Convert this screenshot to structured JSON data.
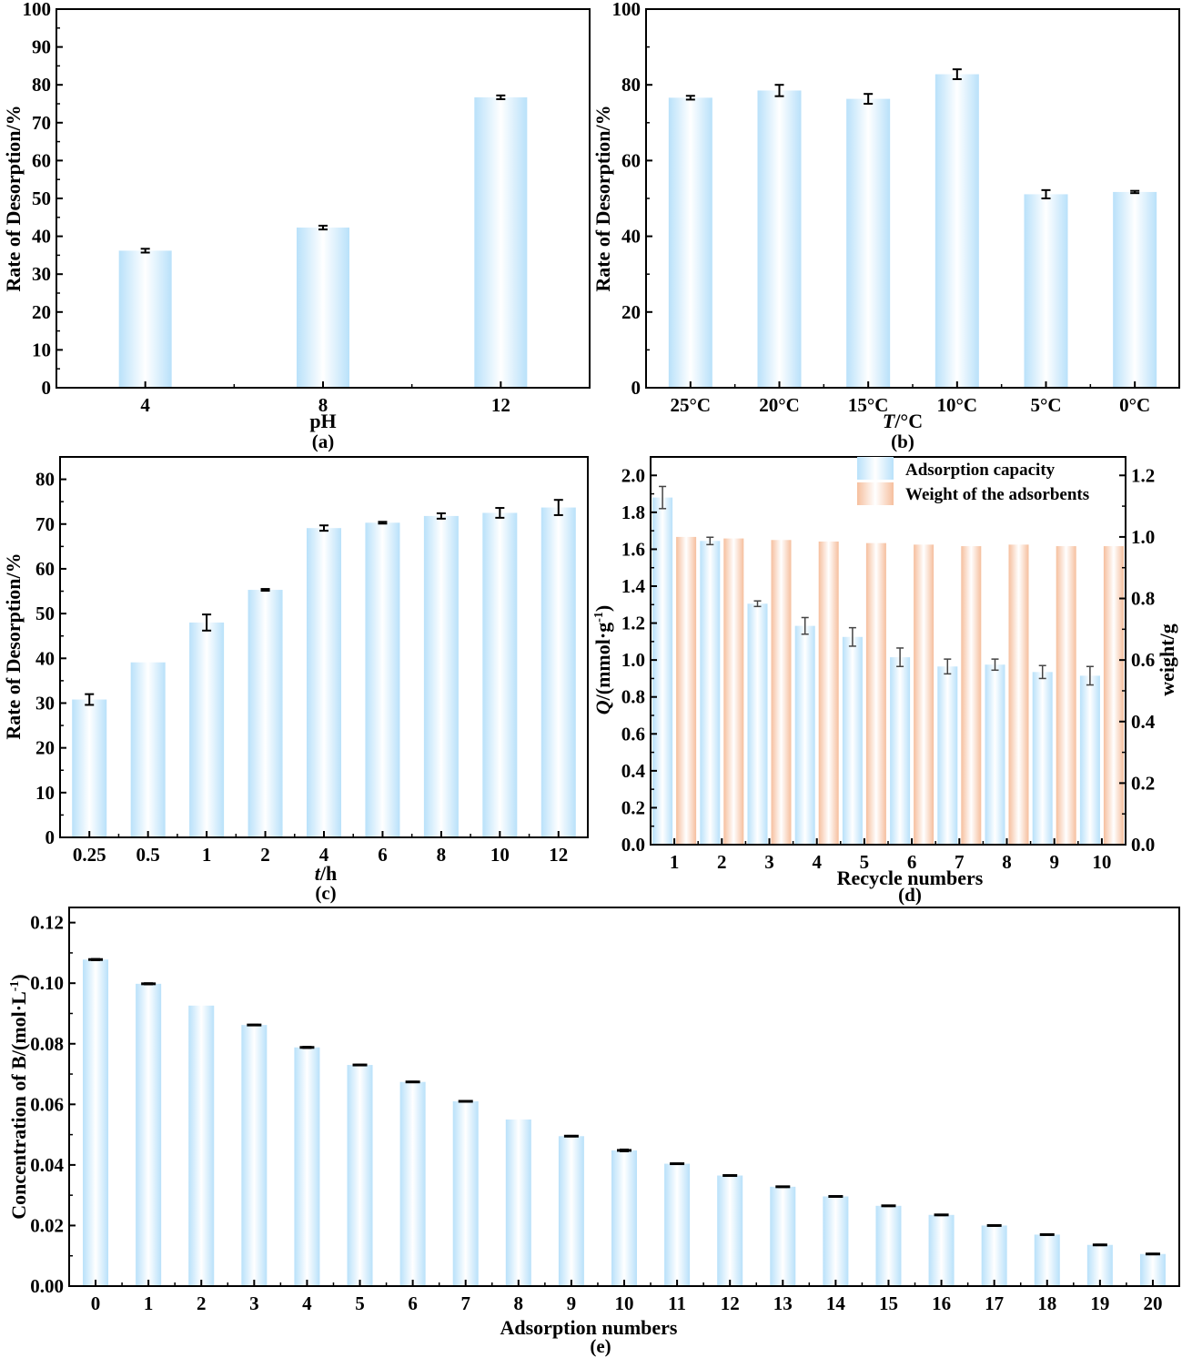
{
  "colors": {
    "blue_edge": "#b9e1fa",
    "blue_center": "#ffffff",
    "orange_edge": "#f6bf9e",
    "orange_center": "#ffffff",
    "axis": "#000000",
    "errorbar": "#000000",
    "errorbar_d": "#444444"
  },
  "chart_data": [
    {
      "id": "a",
      "type": "bar",
      "panel_label": "(a)",
      "title": "",
      "xlabel": "pH",
      "ylabel": "Rate of Desorption/%",
      "categories": [
        "4",
        "8",
        "12"
      ],
      "values": [
        36.2,
        42.3,
        76.7
      ],
      "errors": [
        0.5,
        0.5,
        0.5
      ],
      "ylim": [
        0,
        100
      ],
      "yticks": [
        0,
        10,
        20,
        30,
        40,
        50,
        60,
        70,
        80,
        90,
        100
      ],
      "grid": false
    },
    {
      "id": "b",
      "type": "bar",
      "panel_label": "(b)",
      "title": "",
      "xlabel_italic": "T",
      "xlabel_rest": "/°C",
      "ylabel": "Rate of Desorption/%",
      "categories": [
        "25°C",
        "20°C",
        "15°C",
        "10°C",
        "5°C",
        "0°C"
      ],
      "values": [
        76.6,
        78.5,
        76.3,
        82.8,
        51.1,
        51.7
      ],
      "errors": [
        0.5,
        1.5,
        1.3,
        1.3,
        1.1,
        0.3
      ],
      "ylim": [
        0,
        100
      ],
      "yticks": [
        0,
        20,
        40,
        60,
        80,
        100
      ],
      "grid": false
    },
    {
      "id": "c",
      "type": "bar",
      "panel_label": "(c)",
      "title": "",
      "xlabel_italic": "t",
      "xlabel_rest": "/h",
      "ylabel": "Rate of Desorption/%",
      "categories": [
        "0.25",
        "0.5",
        "1",
        "2",
        "4",
        "6",
        "8",
        "10",
        "12"
      ],
      "values": [
        30.8,
        39.1,
        48.0,
        55.3,
        69.1,
        70.3,
        71.8,
        72.5,
        73.7
      ],
      "errors": [
        1.2,
        0,
        1.8,
        0.2,
        0.6,
        0.2,
        0.6,
        1.1,
        1.7
      ],
      "ylim": [
        0,
        85
      ],
      "yticks": [
        0,
        10,
        20,
        30,
        40,
        50,
        60,
        70,
        80
      ],
      "grid": false
    },
    {
      "id": "d",
      "type": "bar",
      "panel_label": "(d)",
      "title": "",
      "xlabel": "Recycle numbers",
      "ylabel_italic": "Q",
      "ylabel_rest": "/(mmol·g",
      "ylabel_sup": "-1",
      "ylabel_close": ")",
      "ylabel_right": "weight/g",
      "categories": [
        "1",
        "2",
        "3",
        "4",
        "5",
        "6",
        "7",
        "8",
        "9",
        "10"
      ],
      "series": [
        {
          "name": "Adsorption capacity",
          "axis": "left",
          "values": [
            1.88,
            1.645,
            1.305,
            1.185,
            1.125,
            1.015,
            0.965,
            0.975,
            0.935,
            0.915
          ],
          "errors": [
            0.06,
            0.02,
            0.015,
            0.045,
            0.05,
            0.05,
            0.04,
            0.03,
            0.035,
            0.05
          ]
        },
        {
          "name": "Weight of the adsorbents",
          "axis": "right",
          "values": [
            1.0,
            0.995,
            0.99,
            0.985,
            0.98,
            0.975,
            0.97,
            0.975,
            0.97,
            0.97
          ]
        }
      ],
      "ylim": [
        0,
        2.1
      ],
      "yticks": [
        0.0,
        0.2,
        0.4,
        0.6,
        0.8,
        1.0,
        1.2,
        1.4,
        1.6,
        1.8,
        2.0
      ],
      "ylim_right": [
        0,
        1.26
      ],
      "yticks_right": [
        0.0,
        0.2,
        0.4,
        0.6,
        0.8,
        1.0,
        1.2
      ],
      "legend_position": "top-right",
      "grid": false
    },
    {
      "id": "e",
      "type": "bar",
      "panel_label": "(e)",
      "title": "",
      "xlabel": "Adsorption numbers",
      "ylabel": "Concentration of B/(mol·L",
      "ylabel_sup": "-1",
      "ylabel_close": ")",
      "categories": [
        "0",
        "1",
        "2",
        "3",
        "4",
        "5",
        "6",
        "7",
        "8",
        "9",
        "10",
        "11",
        "12",
        "13",
        "14",
        "15",
        "16",
        "17",
        "18",
        "19",
        "20"
      ],
      "values": [
        0.1078,
        0.0998,
        0.0926,
        0.0862,
        0.0788,
        0.073,
        0.0674,
        0.061,
        0.055,
        0.0495,
        0.0448,
        0.0404,
        0.0365,
        0.0328,
        0.0296,
        0.0265,
        0.0235,
        0.02,
        0.017,
        0.0136,
        0.0106
      ],
      "errors": [
        0.0002,
        0.0002,
        0,
        0.0001,
        0.0002,
        0.0001,
        0.0001,
        0.0001,
        0,
        0.0001,
        0.0003,
        0.0001,
        0.0001,
        0.0001,
        0.0001,
        0.0001,
        0.0001,
        0.0001,
        0.0001,
        0.0001,
        0.0001
      ],
      "ylim": [
        0,
        0.125
      ],
      "yticks": [
        0.0,
        0.02,
        0.04,
        0.06,
        0.08,
        0.1,
        0.12
      ],
      "grid": false
    }
  ]
}
